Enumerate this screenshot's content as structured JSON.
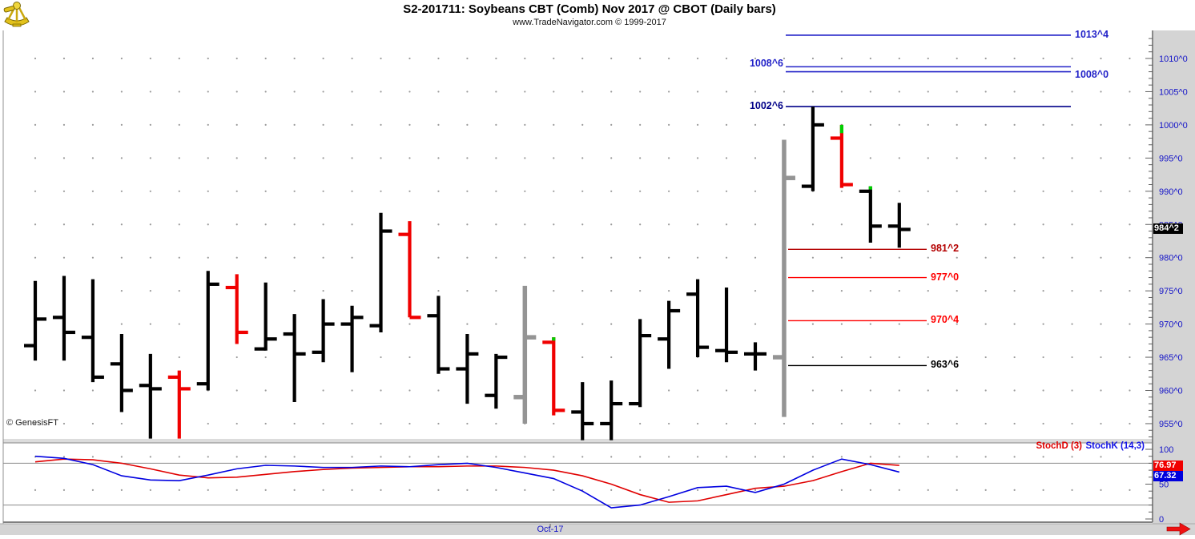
{
  "header": {
    "title": "S2-201711:  Soybeans CBT (Comb) Nov 2017 @ CBOT  (Daily bars)",
    "subtitle": "www.TradeNavigator.com © 1999-2017",
    "logo_icon": "sextant-icon"
  },
  "watermark": {
    "text": "© GenesisFT"
  },
  "price_axis": {
    "badge_text": "984^2",
    "badge_value": 984.25,
    "badge_bg": "#000000",
    "labels": [
      {
        "text": "1010^0",
        "value": 1010
      },
      {
        "text": "1005^0",
        "value": 1005
      },
      {
        "text": "1000^0",
        "value": 1000
      },
      {
        "text": "995^0",
        "value": 995
      },
      {
        "text": "990^0",
        "value": 990
      },
      {
        "text": "985^0",
        "value": 985
      },
      {
        "text": "980^0",
        "value": 980
      },
      {
        "text": "975^0",
        "value": 975
      },
      {
        "text": "970^0",
        "value": 970
      },
      {
        "text": "965^0",
        "value": 965
      },
      {
        "text": "960^0",
        "value": 960
      },
      {
        "text": "955^0",
        "value": 955
      }
    ]
  },
  "stoch_panel": {
    "legend_d": "StochD (3)",
    "legend_k": "StochK (14,3)",
    "badge_d": "76.97",
    "badge_k": "67.32",
    "badge_d_bg": "#f00000",
    "badge_k_bg": "#0000dd",
    "axis_labels": [
      {
        "text": "100",
        "value": 100
      },
      {
        "text": "50",
        "value": 50
      },
      {
        "text": "0",
        "value": 0
      }
    ],
    "guide_levels": [
      80,
      20
    ]
  },
  "date_axis": {
    "label": "Oct-17"
  },
  "colors": {
    "bar_black": "#000000",
    "bar_red": "#f00000",
    "bar_gray": "#949494",
    "bar_green": "#00cf00",
    "blue_line": "#2222c8",
    "navy_line": "#000088",
    "axis_text": "#1414c8",
    "stoch_k": "#0000e0",
    "stoch_d": "#e00000",
    "panel_gray": "#d4d4d4",
    "grid_dot": "#9a9a9a"
  },
  "chart_data": {
    "type": "ohlc-bar",
    "title": "S2-201711:  Soybeans CBT (Comb) Nov 2017 @ CBOT  (Daily bars)",
    "price_ylim": [
      952,
      1014.5
    ],
    "grid": "dotted",
    "levels": [
      {
        "label": "1013^4",
        "value": 1013.5,
        "color": "#2222c8",
        "label_side": "right",
        "extent": "long",
        "label_dy": 0
      },
      {
        "label": "1008^6",
        "value": 1008.75,
        "color": "#2222c8",
        "label_side": "left",
        "extent": "long",
        "label_dy": -3
      },
      {
        "label": "1008^0",
        "value": 1008.0,
        "color": "#2222c8",
        "label_side": "right",
        "extent": "long",
        "label_dy": 4
      },
      {
        "label": "1002^6",
        "value": 1002.75,
        "color": "#000088",
        "label_side": "left",
        "extent": "long",
        "label_dy": 0
      },
      {
        "label": "981^2",
        "value": 981.25,
        "color": "#b40000",
        "label_side": "right",
        "extent": "short",
        "label_dy": 0
      },
      {
        "label": "977^0",
        "value": 977.0,
        "color": "#ff0000",
        "label_side": "right",
        "extent": "short",
        "label_dy": 0
      },
      {
        "label": "970^4",
        "value": 970.5,
        "color": "#ff0000",
        "label_side": "right",
        "extent": "short",
        "label_dy": 0
      },
      {
        "label": "963^6",
        "value": 963.75,
        "color": "#000000",
        "label_side": "right",
        "extent": "short",
        "label_dy": 0
      }
    ],
    "bars": [
      {
        "o": 966.75,
        "h": 976.5,
        "l": 964.5,
        "c": 970.75,
        "color": "black"
      },
      {
        "o": 971.0,
        "h": 977.25,
        "l": 964.5,
        "c": 968.75,
        "color": "black"
      },
      {
        "o": 968.0,
        "h": 976.75,
        "l": 961.25,
        "c": 962.0,
        "color": "black"
      },
      {
        "o": 964.0,
        "h": 968.5,
        "l": 956.75,
        "c": 960.0,
        "color": "black"
      },
      {
        "o": 960.75,
        "h": 965.5,
        "l": 952.75,
        "c": 960.25,
        "color": "black"
      },
      {
        "o": 962.0,
        "h": 963.0,
        "l": 952.75,
        "c": 960.25,
        "color": "red"
      },
      {
        "o": 961.0,
        "h": 978.0,
        "l": 960.0,
        "c": 976.0,
        "color": "black"
      },
      {
        "o": 975.5,
        "h": 977.5,
        "l": 967.0,
        "c": 968.75,
        "color": "red"
      },
      {
        "o": 966.25,
        "h": 976.25,
        "l": 966.0,
        "c": 967.75,
        "color": "black"
      },
      {
        "o": 968.5,
        "h": 971.5,
        "l": 958.25,
        "c": 965.5,
        "color": "black"
      },
      {
        "o": 965.75,
        "h": 973.75,
        "l": 964.25,
        "c": 970.0,
        "color": "black"
      },
      {
        "o": 970.0,
        "h": 972.75,
        "l": 962.75,
        "c": 971.0,
        "color": "black"
      },
      {
        "o": 969.75,
        "h": 986.75,
        "l": 968.75,
        "c": 984.0,
        "color": "black"
      },
      {
        "o": 983.5,
        "h": 985.5,
        "l": 971.0,
        "c": 971.0,
        "color": "red"
      },
      {
        "o": 971.25,
        "h": 974.25,
        "l": 962.5,
        "c": 963.25,
        "color": "black"
      },
      {
        "o": 963.25,
        "h": 968.5,
        "l": 958.0,
        "c": 965.5,
        "color": "black"
      },
      {
        "o": 959.25,
        "h": 965.5,
        "l": 957.25,
        "c": 965.0,
        "color": "black"
      },
      {
        "o": 959.0,
        "h": 975.75,
        "l": 955.0,
        "c": 968.0,
        "color": "gray"
      },
      {
        "o": 967.25,
        "h": 968.0,
        "l": 956.25,
        "c": 957.0,
        "color": "red",
        "green_top_to": 967.5
      },
      {
        "o": 956.75,
        "h": 961.25,
        "l": 952.5,
        "c": 955.0,
        "color": "black"
      },
      {
        "o": 955.0,
        "h": 961.5,
        "l": 952.5,
        "c": 958.0,
        "color": "black"
      },
      {
        "o": 958.0,
        "h": 970.75,
        "l": 957.5,
        "c": 968.25,
        "color": "black"
      },
      {
        "o": 967.75,
        "h": 973.5,
        "l": 963.25,
        "c": 972.0,
        "color": "black"
      },
      {
        "o": 974.5,
        "h": 976.75,
        "l": 965.0,
        "c": 966.5,
        "color": "black"
      },
      {
        "o": 966.0,
        "h": 975.5,
        "l": 964.25,
        "c": 965.75,
        "color": "black"
      },
      {
        "o": 965.5,
        "h": 967.25,
        "l": 963.0,
        "c": 965.5,
        "color": "black"
      },
      {
        "o": 965.0,
        "h": 997.75,
        "l": 956.0,
        "c": 992.0,
        "color": "gray"
      },
      {
        "o": 990.75,
        "h": 1002.75,
        "l": 990.0,
        "c": 1000.0,
        "color": "black"
      },
      {
        "o": 998.0,
        "h": 1000.0,
        "l": 990.5,
        "c": 991.0,
        "color": "red",
        "green_top_to": 998.75
      },
      {
        "o": 990.0,
        "h": 990.75,
        "l": 982.25,
        "c": 984.75,
        "color": "black",
        "green_top_to": 990.25
      },
      {
        "o": 984.75,
        "h": 988.25,
        "l": 981.5,
        "c": 984.25,
        "color": "black"
      }
    ],
    "stoch": {
      "ylim": [
        0,
        100
      ],
      "k_name": "StochK (14,3)",
      "d_name": "StochD (3)",
      "k_last": 67.32,
      "d_last": 76.97,
      "k": [
        90,
        87,
        78,
        62,
        56,
        55,
        63,
        72,
        77,
        76,
        74,
        74,
        76,
        75,
        78,
        80,
        74,
        66,
        58,
        40,
        16,
        20,
        32,
        45,
        47,
        38,
        50,
        70,
        86,
        78,
        67.32
      ],
      "d": [
        82,
        86,
        85,
        80,
        72,
        63,
        59,
        60,
        64,
        68,
        71,
        73,
        74,
        75,
        75,
        76,
        76,
        74,
        70,
        62,
        50,
        35,
        24,
        26,
        35,
        44,
        47,
        55,
        68,
        80,
        76.97
      ]
    }
  }
}
